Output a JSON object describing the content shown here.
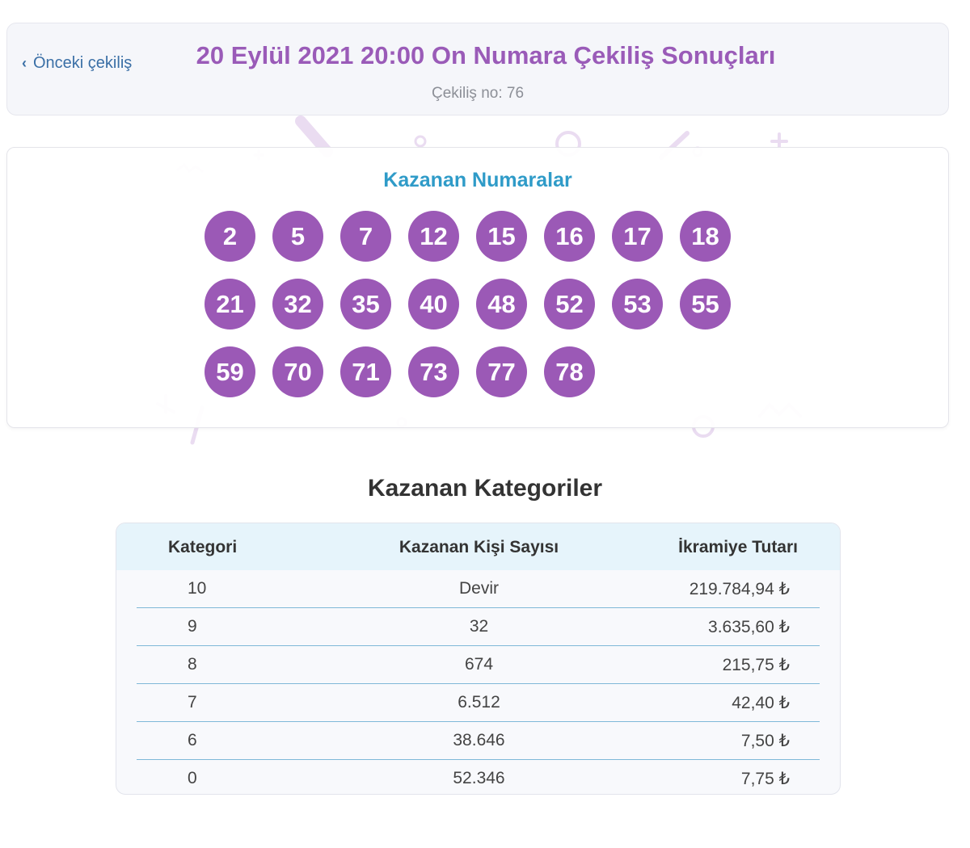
{
  "header": {
    "prev_label": "Önceki çekiliş",
    "title": "20 Eylül 2021 20:00 On Numara Çekiliş Sonuçları",
    "draw_no": "Çekiliş no: 76"
  },
  "winning_numbers": {
    "title": "Kazanan Numaralar",
    "numbers": [
      "2",
      "5",
      "7",
      "12",
      "15",
      "16",
      "17",
      "18",
      "21",
      "32",
      "35",
      "40",
      "48",
      "52",
      "53",
      "55",
      "59",
      "70",
      "71",
      "73",
      "77",
      "78"
    ]
  },
  "categories": {
    "title": "Kazanan Kategoriler",
    "headers": [
      "Kategori",
      "Kazanan Kişi Sayısı",
      "İkramiye Tutarı"
    ],
    "rows": [
      {
        "category": "10",
        "winners": "Devir",
        "prize": "219.784,94 ₺"
      },
      {
        "category": "9",
        "winners": "32",
        "prize": "3.635,60 ₺"
      },
      {
        "category": "8",
        "winners": "674",
        "prize": "215,75 ₺"
      },
      {
        "category": "7",
        "winners": "6.512",
        "prize": "42,40 ₺"
      },
      {
        "category": "6",
        "winners": "38.646",
        "prize": "7,50 ₺"
      },
      {
        "category": "0",
        "winners": "52.346",
        "prize": "7,75 ₺"
      }
    ]
  },
  "colors": {
    "accent": "#9b59b6",
    "title_purple": "#9a5bb8",
    "link_blue": "#3a6fa6",
    "numbers_title": "#2f9bc8",
    "table_header_bg": "#e6f4fb"
  }
}
